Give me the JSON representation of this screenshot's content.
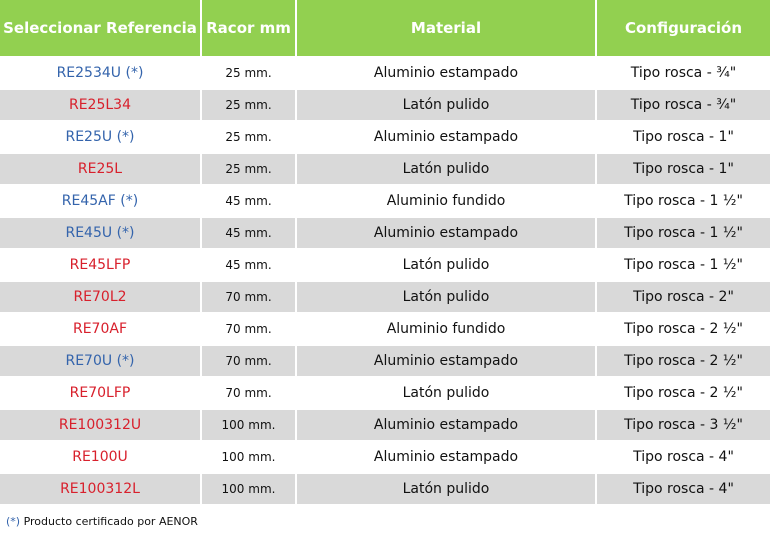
{
  "headers": [
    "Seleccionar Referencia",
    "Racor mm",
    "Material",
    "Configuración"
  ],
  "colors": {
    "header": "#92d050",
    "alt_row": "#d9d9d9",
    "certified_ref": "#3464ac",
    "other_ref": "#d8202c"
  },
  "rows": [
    {
      "ref": "RE2534U (*)",
      "certified": true,
      "racor": "25 mm.",
      "material": "Aluminio estampado",
      "config": "Tipo rosca - ¾\""
    },
    {
      "ref": "RE25L34",
      "certified": false,
      "racor": "25 mm.",
      "material": "Latón pulido",
      "config": "Tipo rosca - ¾\""
    },
    {
      "ref": "RE25U (*)",
      "certified": true,
      "racor": "25 mm.",
      "material": "Aluminio estampado",
      "config": "Tipo rosca - 1\""
    },
    {
      "ref": "RE25L",
      "certified": false,
      "racor": "25 mm.",
      "material": "Latón pulido",
      "config": "Tipo rosca - 1\""
    },
    {
      "ref": "RE45AF (*)",
      "certified": true,
      "racor": "45 mm.",
      "material": "Aluminio fundido",
      "config": "Tipo rosca - 1 ½\""
    },
    {
      "ref": "RE45U (*)",
      "certified": true,
      "racor": "45 mm.",
      "material": "Aluminio estampado",
      "config": "Tipo rosca - 1 ½\""
    },
    {
      "ref": "RE45LFP",
      "certified": false,
      "racor": "45 mm.",
      "material": "Latón pulido",
      "config": "Tipo rosca - 1 ½\""
    },
    {
      "ref": "RE70L2",
      "certified": false,
      "racor": "70 mm.",
      "material": "Latón pulido",
      "config": "Tipo rosca - 2\""
    },
    {
      "ref": "RE70AF",
      "certified": false,
      "racor": "70 mm.",
      "material": "Aluminio fundido",
      "config": "Tipo rosca - 2 ½\""
    },
    {
      "ref": "RE70U (*)",
      "certified": true,
      "racor": "70 mm.",
      "material": "Aluminio estampado",
      "config": "Tipo rosca - 2 ½\""
    },
    {
      "ref": "RE70LFP",
      "certified": false,
      "racor": "70 mm.",
      "material": "Latón pulido",
      "config": "Tipo rosca - 2 ½\""
    },
    {
      "ref": "RE100312U",
      "certified": false,
      "racor": "100 mm.",
      "material": "Aluminio estampado",
      "config": "Tipo rosca - 3 ½\""
    },
    {
      "ref": "RE100U",
      "certified": false,
      "racor": "100 mm.",
      "material": "Aluminio estampado",
      "config": "Tipo rosca - 4\""
    },
    {
      "ref": "RE100312L",
      "certified": false,
      "racor": "100 mm.",
      "material": "Latón pulido",
      "config": "Tipo rosca - 4\""
    }
  ],
  "footnote": {
    "mark": "(*)",
    "text": " Producto certificado por AENOR"
  }
}
